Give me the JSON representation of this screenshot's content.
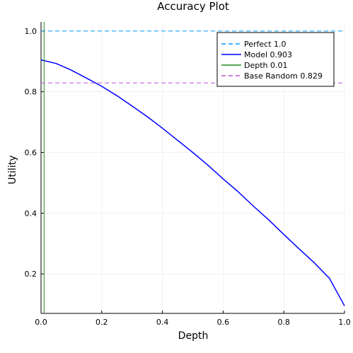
{
  "chart_data": {
    "type": "line",
    "title": "Accuracy Plot",
    "xlabel": "Depth",
    "ylabel": "Utility",
    "xlim": [
      0,
      1
    ],
    "ylim": [
      0.07,
      1.03
    ],
    "xticks": [
      0.0,
      0.2,
      0.4,
      0.6,
      0.8,
      1.0
    ],
    "xtick_labels": [
      "0.0",
      "0.2",
      "0.4",
      "0.6",
      "0.8",
      "1.0"
    ],
    "yticks": [
      0.2,
      0.4,
      0.6,
      0.8,
      1.0
    ],
    "ytick_labels": [
      "0.2",
      "0.4",
      "0.6",
      "0.8",
      "1.0"
    ],
    "grid": true,
    "legend_position": "top-right",
    "series": [
      {
        "name": "Perfect 1.0",
        "kind": "hline",
        "value": 1.0,
        "color": "#009AFA",
        "style": "dashed"
      },
      {
        "name": "Model 0.903",
        "kind": "line",
        "color": "#0000FF",
        "style": "solid",
        "x": [
          0.0,
          0.05,
          0.1,
          0.15,
          0.2,
          0.25,
          0.3,
          0.35,
          0.4,
          0.45,
          0.5,
          0.55,
          0.6,
          0.65,
          0.7,
          0.75,
          0.8,
          0.85,
          0.9,
          0.95,
          1.0
        ],
        "y": [
          0.905,
          0.893,
          0.871,
          0.845,
          0.818,
          0.787,
          0.753,
          0.718,
          0.68,
          0.64,
          0.6,
          0.558,
          0.513,
          0.47,
          0.423,
          0.378,
          0.33,
          0.283,
          0.237,
          0.186,
          0.095
        ]
      },
      {
        "name": "Depth 0.01",
        "kind": "vline",
        "value": 0.01,
        "color": "#228B22",
        "style": "solid"
      },
      {
        "name": "Base Random 0.829",
        "kind": "hline",
        "value": 0.829,
        "color": "#BA55D3",
        "style": "dashed"
      }
    ]
  }
}
